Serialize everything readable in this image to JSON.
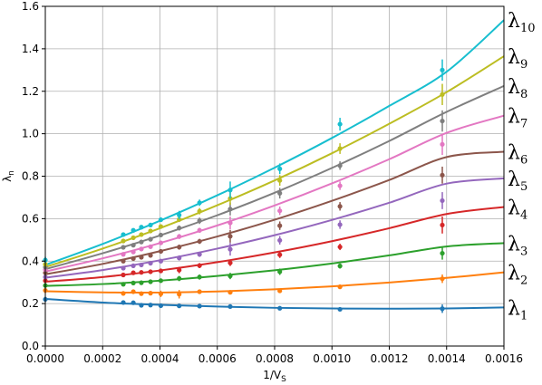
{
  "chart_data": {
    "type": "line",
    "title": "",
    "xlabel": "1/V",
    "xlabel_sub": "S",
    "ylabel": "λ",
    "ylabel_sub": "n",
    "xlim": [
      0,
      0.0016
    ],
    "ylim": [
      0,
      1.6
    ],
    "grid": true,
    "x_ticks": [
      0,
      0.0002,
      0.0004,
      0.0006,
      0.0008,
      0.001,
      0.0012,
      0.0014,
      0.0016
    ],
    "x_tick_labels": [
      "0.0000",
      "0.0002",
      "0.0004",
      "0.0006",
      "0.0008",
      "0.0010",
      "0.0012",
      "0.0014",
      "0.0016"
    ],
    "y_ticks": [
      0,
      0.2,
      0.4,
      0.6,
      0.8,
      1.0,
      1.2,
      1.4,
      1.6
    ],
    "y_tick_labels": [
      "0.0",
      "0.2",
      "0.4",
      "0.6",
      "0.8",
      "1.0",
      "1.2",
      "1.4",
      "1.6"
    ],
    "x_points": [
      0,
      0.000272,
      0.000307,
      0.000335,
      0.000367,
      0.000403,
      0.000467,
      0.000538,
      0.000645,
      0.000818,
      0.001028,
      0.001385
    ],
    "series": [
      {
        "label": "λ",
        "label_sub": "1",
        "color": "#1f77b4",
        "curve": {
          "x": [
            0,
            0.0002,
            0.0004,
            0.0006,
            0.0008,
            0.001,
            0.0012,
            0.0014,
            0.0016
          ],
          "y": [
            0.222,
            0.205,
            0.194,
            0.186,
            0.18,
            0.177,
            0.176,
            0.177,
            0.182
          ]
        },
        "points": [
          0.22,
          0.205,
          0.204,
          0.192,
          0.193,
          0.19,
          0.189,
          0.188,
          0.186,
          0.178,
          0.173,
          0.176
        ],
        "errors": [
          0.012,
          0.01,
          0.01,
          0.008,
          0.008,
          0.008,
          0.008,
          0.008,
          0.008,
          0.008,
          0.008,
          0.02
        ]
      },
      {
        "label": "λ",
        "label_sub": "2",
        "color": "#ff7f0e",
        "curve": {
          "x": [
            0,
            0.0002,
            0.0004,
            0.0006,
            0.0008,
            0.001,
            0.0012,
            0.0014,
            0.0016
          ],
          "y": [
            0.258,
            0.253,
            0.252,
            0.257,
            0.267,
            0.281,
            0.299,
            0.321,
            0.347
          ]
        },
        "points": [
          0.262,
          0.248,
          0.256,
          0.247,
          0.249,
          0.246,
          0.244,
          0.256,
          0.253,
          0.26,
          0.279,
          0.317
        ],
        "errors": [
          0.012,
          0.01,
          0.01,
          0.008,
          0.008,
          0.015,
          0.02,
          0.01,
          0.01,
          0.01,
          0.01,
          0.02
        ]
      },
      {
        "label": "λ",
        "label_sub": "3",
        "color": "#2ca02c",
        "curve": {
          "x": [
            0,
            0.0002,
            0.0004,
            0.0006,
            0.0008,
            0.001,
            0.0012,
            0.0014,
            0.0016
          ],
          "y": [
            0.283,
            0.292,
            0.308,
            0.33,
            0.357,
            0.389,
            0.427,
            0.469,
            0.485
          ]
        },
        "points": [
          0.285,
          0.291,
          0.297,
          0.298,
          0.303,
          0.308,
          0.318,
          0.325,
          0.33,
          0.35,
          0.377,
          0.437
        ],
        "errors": [
          0.01,
          0.01,
          0.01,
          0.01,
          0.01,
          0.01,
          0.012,
          0.012,
          0.015,
          0.015,
          0.012,
          0.03
        ]
      },
      {
        "label": "λ",
        "label_sub": "4",
        "color": "#d62728",
        "curve": {
          "x": [
            0,
            0.0002,
            0.0004,
            0.0006,
            0.0008,
            0.001,
            0.0012,
            0.0014,
            0.0016
          ],
          "y": [
            0.303,
            0.325,
            0.356,
            0.395,
            0.441,
            0.494,
            0.555,
            0.622,
            0.655
          ]
        },
        "points": [
          0.308,
          0.335,
          0.345,
          0.347,
          0.35,
          0.354,
          0.358,
          0.379,
          0.392,
          0.43,
          0.467,
          0.57
        ],
        "errors": [
          0.01,
          0.01,
          0.01,
          0.01,
          0.01,
          0.01,
          0.015,
          0.012,
          0.015,
          0.015,
          0.015,
          0.04
        ]
      },
      {
        "label": "λ",
        "label_sub": "5",
        "color": "#9467bd",
        "curve": {
          "x": [
            0,
            0.0002,
            0.0004,
            0.0006,
            0.0008,
            0.001,
            0.0012,
            0.0014,
            0.0016
          ],
          "y": [
            0.322,
            0.358,
            0.404,
            0.459,
            0.522,
            0.594,
            0.675,
            0.765,
            0.79
          ]
        },
        "points": [
          0.325,
          0.367,
          0.378,
          0.382,
          0.39,
          0.4,
          0.415,
          0.432,
          0.456,
          0.498,
          0.572,
          0.685
        ],
        "errors": [
          0.01,
          0.01,
          0.01,
          0.01,
          0.01,
          0.01,
          0.012,
          0.012,
          0.03,
          0.02,
          0.02,
          0.04
        ]
      },
      {
        "label": "λ",
        "label_sub": "6",
        "color": "#8c564b",
        "curve": {
          "x": [
            0,
            0.0002,
            0.0004,
            0.0006,
            0.0008,
            0.001,
            0.0012,
            0.0014,
            0.0016
          ],
          "y": [
            0.338,
            0.387,
            0.447,
            0.516,
            0.595,
            0.684,
            0.782,
            0.89,
            0.915
          ]
        },
        "points": [
          0.345,
          0.4,
          0.412,
          0.418,
          0.427,
          0.446,
          0.466,
          0.493,
          0.517,
          0.567,
          0.658,
          0.805
        ],
        "errors": [
          0.01,
          0.01,
          0.01,
          0.01,
          0.01,
          0.01,
          0.012,
          0.012,
          0.03,
          0.02,
          0.02,
          0.04
        ]
      },
      {
        "label": "λ",
        "label_sub": "7",
        "color": "#e377c2",
        "curve": {
          "x": [
            0,
            0.0002,
            0.0004,
            0.0006,
            0.0008,
            0.001,
            0.0012,
            0.0014,
            0.0016
          ],
          "y": [
            0.351,
            0.413,
            0.485,
            0.568,
            0.662,
            0.766,
            0.88,
            1.004,
            1.085
          ]
        },
        "points": [
          0.36,
          0.432,
          0.443,
          0.457,
          0.468,
          0.486,
          0.516,
          0.545,
          0.58,
          0.637,
          0.755,
          0.95
        ],
        "errors": [
          0.01,
          0.01,
          0.01,
          0.01,
          0.01,
          0.01,
          0.012,
          0.012,
          0.03,
          0.02,
          0.02,
          0.05
        ]
      },
      {
        "label": "λ",
        "label_sub": "8",
        "color": "#7f7f7f",
        "curve": {
          "x": [
            0,
            0.0002,
            0.0004,
            0.0006,
            0.0008,
            0.001,
            0.0012,
            0.0014,
            0.0016
          ],
          "y": [
            0.362,
            0.437,
            0.521,
            0.616,
            0.722,
            0.839,
            0.966,
            1.103,
            1.225
          ]
        },
        "points": [
          0.372,
          0.465,
          0.475,
          0.49,
          0.503,
          0.523,
          0.556,
          0.59,
          0.645,
          0.72,
          0.85,
          1.06
        ],
        "errors": [
          0.01,
          0.01,
          0.01,
          0.01,
          0.01,
          0.01,
          0.012,
          0.015,
          0.03,
          0.025,
          0.02,
          0.05
        ]
      },
      {
        "label": "λ",
        "label_sub": "9",
        "color": "#bcbd22",
        "curve": {
          "x": [
            0,
            0.0002,
            0.0004,
            0.0006,
            0.0008,
            0.001,
            0.0012,
            0.0014,
            0.0016
          ],
          "y": [
            0.372,
            0.459,
            0.555,
            0.663,
            0.78,
            0.908,
            1.047,
            1.196,
            1.365
          ]
        },
        "points": [
          0.385,
          0.495,
          0.51,
          0.525,
          0.542,
          0.563,
          0.596,
          0.635,
          0.695,
          0.78,
          0.93,
          1.185
        ],
        "errors": [
          0.01,
          0.01,
          0.01,
          0.01,
          0.01,
          0.01,
          0.012,
          0.015,
          0.03,
          0.025,
          0.025,
          0.05
        ]
      },
      {
        "label": "λ",
        "label_sub": "10",
        "color": "#17becf",
        "curve": {
          "x": [
            0,
            0.0002,
            0.0004,
            0.0006,
            0.0008,
            0.001,
            0.0012,
            0.0014,
            0.0016
          ],
          "y": [
            0.382,
            0.481,
            0.59,
            0.71,
            0.84,
            0.98,
            1.131,
            1.292,
            1.535
          ]
        },
        "points": [
          0.405,
          0.525,
          0.545,
          0.56,
          0.57,
          0.595,
          0.617,
          0.675,
          0.735,
          0.835,
          1.045,
          1.3
        ],
        "errors": [
          0.015,
          0.01,
          0.01,
          0.01,
          0.01,
          0.01,
          0.02,
          0.015,
          0.04,
          0.025,
          0.03,
          0.05
        ]
      }
    ]
  }
}
